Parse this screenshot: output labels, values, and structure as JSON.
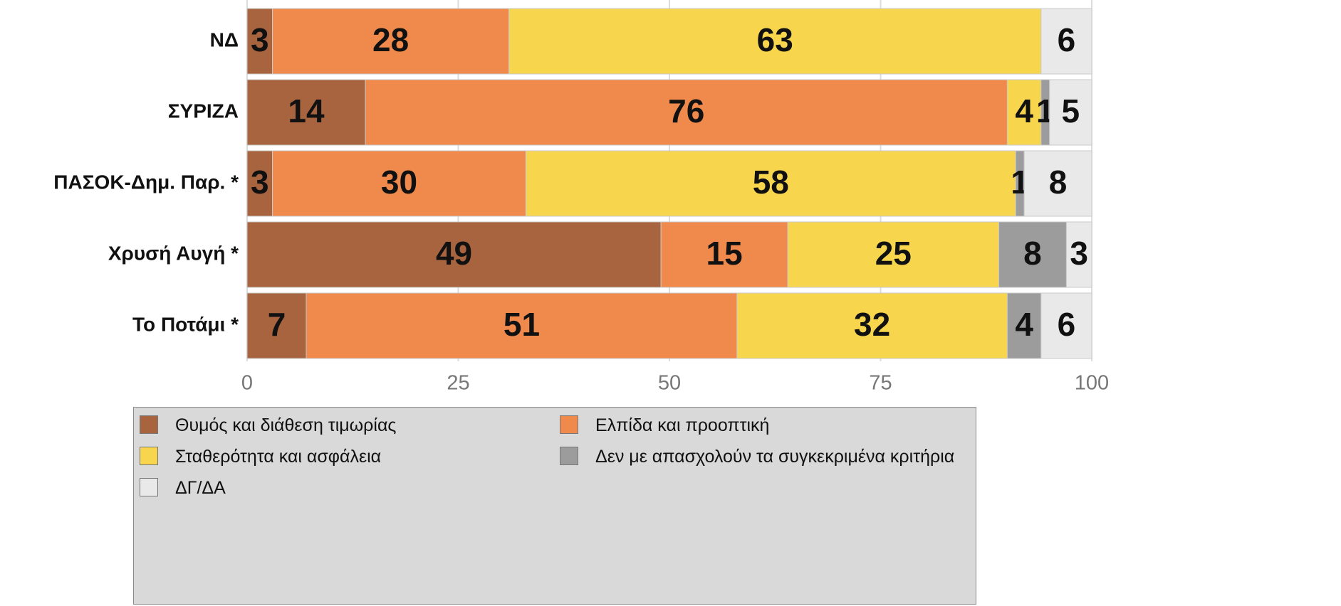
{
  "chart_data": {
    "type": "stacked_bar_horizontal",
    "categories": [
      "ΝΔ",
      "ΣΥΡΙΖΑ",
      "ΠΑΣΟΚ-Δημ. Παρ. *",
      "Χρυσή Αυγή *",
      "Το Ποτάμι *"
    ],
    "series": [
      {
        "name": "Θυμός και διάθεση τιμωρίας",
        "color": "#a8643f",
        "values": [
          3,
          14,
          3,
          49,
          7
        ]
      },
      {
        "name": "Ελπίδα και προοπτική",
        "color": "#ef8a4c",
        "values": [
          28,
          76,
          30,
          15,
          51
        ]
      },
      {
        "name": "Σταθερότητα και ασφάλεια",
        "color": "#f7d64e",
        "values": [
          63,
          4,
          58,
          25,
          32
        ]
      },
      {
        "name": "Δεν με απασχολούν τα συγκεκριμένα κριτήρια",
        "color": "#9c9c9c",
        "values": [
          0,
          1,
          1,
          8,
          4
        ]
      },
      {
        "name": "ΔΓ/ΔΑ",
        "color": "#e9e9e9",
        "values": [
          6,
          5,
          8,
          3,
          6
        ]
      }
    ],
    "xlim": [
      0,
      100
    ],
    "xticks": [
      0,
      25,
      50,
      75,
      100
    ],
    "grid": true
  }
}
